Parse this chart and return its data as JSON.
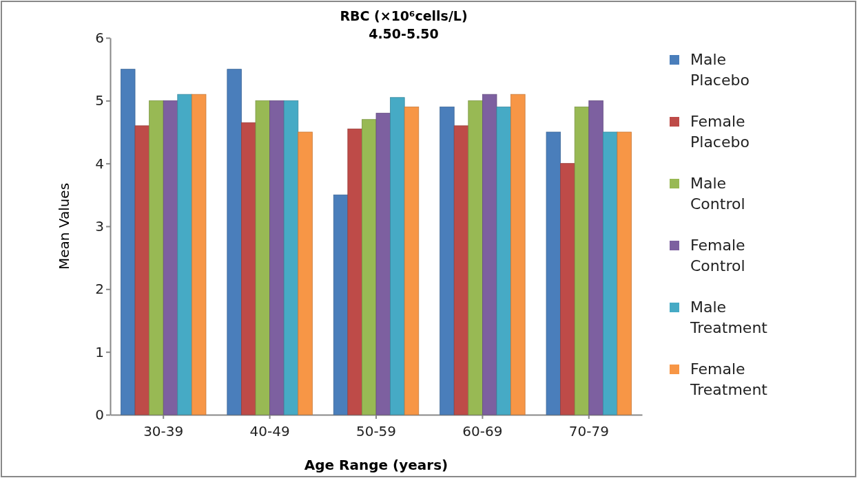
{
  "chart_data": {
    "type": "bar",
    "title": "RBC  (×10⁶cells/L)",
    "subtitle": "4.50-5.50",
    "xlabel": "Age Range (years)",
    "ylabel": "Mean Values",
    "categories": [
      "30-39",
      "40-49",
      "50-59",
      "60-69",
      "70-79"
    ],
    "series": [
      {
        "name": "Male Placebo",
        "color": "#4a7ebb",
        "values": [
          5.5,
          5.5,
          3.5,
          4.9,
          4.5
        ]
      },
      {
        "name": "Female Placebo",
        "color": "#be4b48",
        "values": [
          4.6,
          4.65,
          4.55,
          4.6,
          4.0
        ]
      },
      {
        "name": "Male Control",
        "color": "#98b954",
        "values": [
          5.0,
          5.0,
          4.7,
          5.0,
          4.9
        ]
      },
      {
        "name": "Female Control",
        "color": "#7d60a0",
        "values": [
          5.0,
          5.0,
          4.8,
          5.1,
          5.0
        ]
      },
      {
        "name": "Male Treatment",
        "color": "#46aac5",
        "values": [
          5.1,
          5.0,
          5.05,
          4.9,
          4.5
        ]
      },
      {
        "name": "Female Treatment",
        "color": "#f79646",
        "values": [
          5.1,
          4.5,
          4.9,
          5.1,
          4.5
        ]
      }
    ],
    "ylim": [
      0,
      6
    ],
    "yticks": [
      0,
      1,
      2,
      3,
      4,
      5,
      6
    ],
    "legend": "right"
  }
}
